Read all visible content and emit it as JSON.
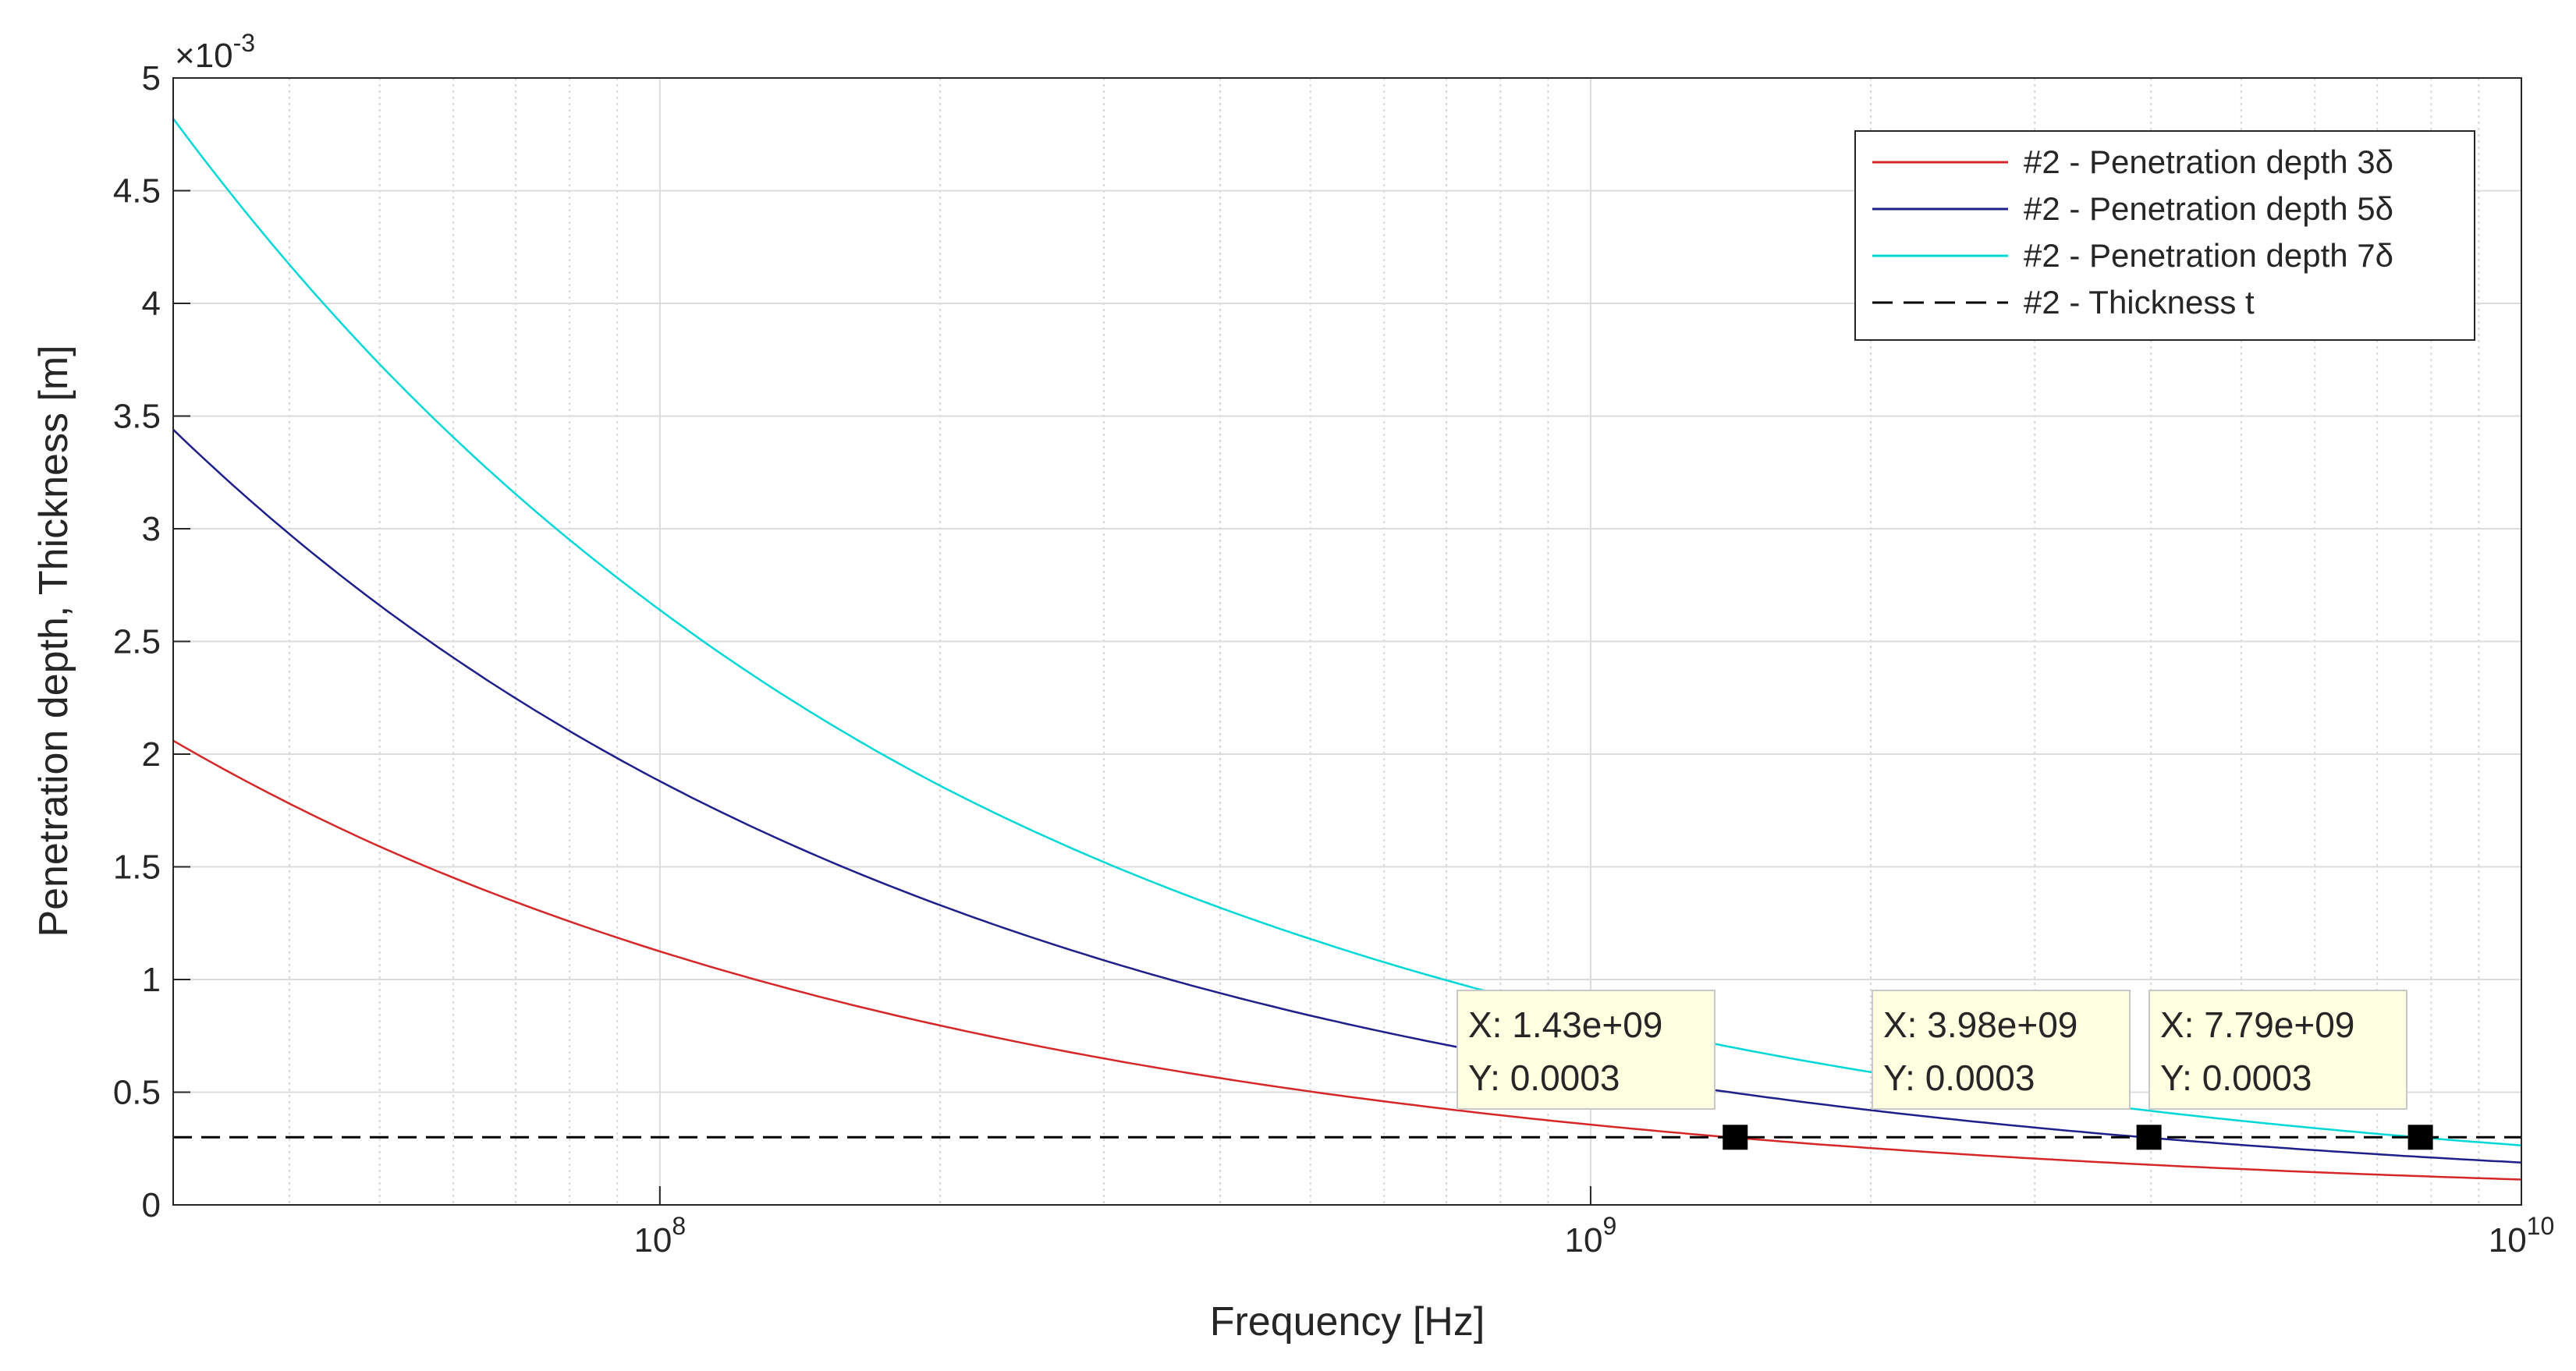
{
  "chart_data": {
    "type": "line",
    "title": "",
    "xlabel": "Frequency [Hz]",
    "ylabel": "Penetration depth, Thickness [m]",
    "xscale": "log",
    "xlim": [
      30000000,
      10000000000
    ],
    "ylim": [
      0,
      0.005
    ],
    "y_exponent_label": "×10",
    "y_exponent_power": "-3",
    "grid": true,
    "minor_grid": true,
    "x_ticks": [
      {
        "value": 100000000,
        "base": "10",
        "power": "8"
      },
      {
        "value": 1000000000,
        "base": "10",
        "power": "9"
      },
      {
        "value": 10000000000,
        "base": "10",
        "power": "10"
      }
    ],
    "y_ticks": [
      {
        "value": 0,
        "label": "0"
      },
      {
        "value": 0.0005,
        "label": "0.5"
      },
      {
        "value": 0.001,
        "label": "1"
      },
      {
        "value": 0.0015,
        "label": "1.5"
      },
      {
        "value": 0.002,
        "label": "2"
      },
      {
        "value": 0.0025,
        "label": "2.5"
      },
      {
        "value": 0.003,
        "label": "3"
      },
      {
        "value": 0.0035,
        "label": "3.5"
      },
      {
        "value": 0.004,
        "label": "4"
      },
      {
        "value": 0.0045,
        "label": "4.5"
      },
      {
        "value": 0.005,
        "label": "5"
      }
    ],
    "legend_position": "top-right",
    "series": [
      {
        "name": "#2 - Penetration depth 3δ",
        "color": "#d62728",
        "style": "solid",
        "x": [
          30000000,
          50000000,
          100000000,
          200000000,
          500000000,
          1000000000,
          2000000000,
          5000000000,
          10000000000
        ],
        "y": [
          0.00206,
          0.00159,
          0.001125,
          0.000796,
          0.000503,
          0.000356,
          0.000252,
          0.000159,
          0.0001125
        ]
      },
      {
        "name": "#2 - Penetration depth 5δ",
        "color": "#1f1f8c",
        "style": "solid",
        "x": [
          30000000,
          50000000,
          100000000,
          200000000,
          500000000,
          1000000000,
          2000000000,
          5000000000,
          10000000000
        ],
        "y": [
          0.00344,
          0.00266,
          0.00188,
          0.00133,
          0.00084,
          0.000594,
          0.00042,
          0.000266,
          0.000188
        ]
      },
      {
        "name": "#2 - Penetration depth 7δ",
        "color": "#00d8d8",
        "style": "solid",
        "x": [
          30000000,
          50000000,
          100000000,
          200000000,
          500000000,
          1000000000,
          2000000000,
          5000000000,
          10000000000
        ],
        "y": [
          0.00482,
          0.00373,
          0.00264,
          0.00186,
          0.00118,
          0.000833,
          0.000589,
          0.000373,
          0.000264
        ]
      },
      {
        "name": "#2 - Thickness t",
        "color": "#000000",
        "style": "dashed",
        "x": [
          30000000,
          10000000000
        ],
        "y": [
          0.0003,
          0.0003
        ]
      }
    ],
    "datatips": [
      {
        "x": 1430000000,
        "y": 0.0003,
        "x_text": "X: 1.43e+09",
        "y_text": "Y: 0.0003"
      },
      {
        "x": 3980000000,
        "y": 0.0003,
        "x_text": "X: 3.98e+09",
        "y_text": "Y: 0.0003"
      },
      {
        "x": 7790000000,
        "y": 0.0003,
        "x_text": "X: 7.79e+09",
        "y_text": "Y: 0.0003"
      }
    ]
  }
}
